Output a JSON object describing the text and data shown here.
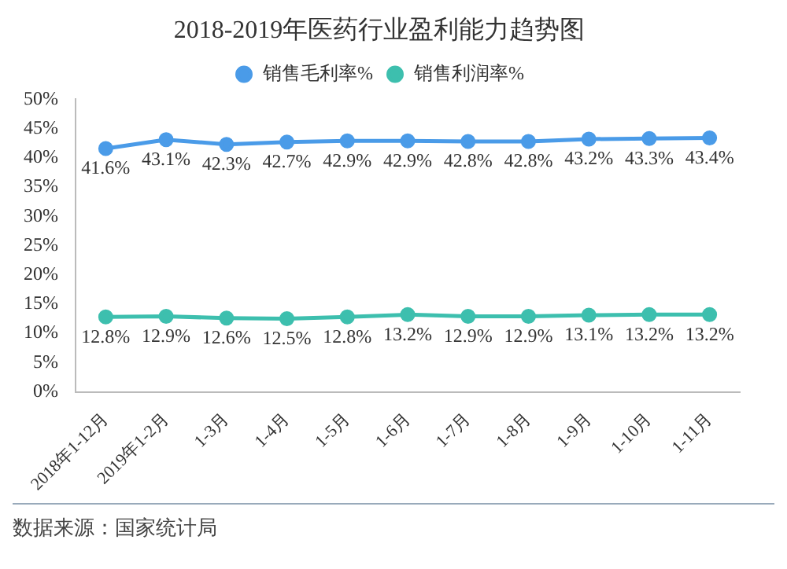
{
  "chart_data": {
    "type": "line",
    "title": "2018-2019年医药行业盈利能力趋势图",
    "categories": [
      "2018年1-12月",
      "2019年1-2月",
      "1-3月",
      "1-4月",
      "1-5月",
      "1-6月",
      "1-7月",
      "1-8月",
      "1-9月",
      "1-10月",
      "1-11月"
    ],
    "series": [
      {
        "name": "销售毛利率%",
        "color": "#4a9be8",
        "values": [
          41.6,
          43.1,
          42.3,
          42.7,
          42.9,
          42.9,
          42.8,
          42.8,
          43.2,
          43.3,
          43.4
        ],
        "value_labels": [
          "41.6%",
          "43.1%",
          "42.3%",
          "42.7%",
          "42.9%",
          "42.9%",
          "42.8%",
          "42.8%",
          "43.2%",
          "43.3%",
          "43.4%"
        ]
      },
      {
        "name": "销售利润率%",
        "color": "#3dbfae",
        "values": [
          12.8,
          12.9,
          12.6,
          12.5,
          12.8,
          13.2,
          12.9,
          12.9,
          13.1,
          13.2,
          13.2
        ],
        "value_labels": [
          "12.8%",
          "12.9%",
          "12.6%",
          "12.5%",
          "12.8%",
          "13.2%",
          "12.9%",
          "12.9%",
          "13.1%",
          "13.2%",
          "13.2%"
        ]
      }
    ],
    "ylim": [
      0,
      50
    ],
    "yticks": [
      {
        "value": 0,
        "label": "0%"
      },
      {
        "value": 5,
        "label": "5%"
      },
      {
        "value": 10,
        "label": "10%"
      },
      {
        "value": 15,
        "label": "15%"
      },
      {
        "value": 20,
        "label": "20%"
      },
      {
        "value": 25,
        "label": "25%"
      },
      {
        "value": 30,
        "label": "30%"
      },
      {
        "value": 35,
        "label": "35%"
      },
      {
        "value": 40,
        "label": "40%"
      },
      {
        "value": 45,
        "label": "45%"
      },
      {
        "value": 50,
        "label": "50%"
      }
    ],
    "grid": false,
    "legend": "top",
    "marker": "circle",
    "line_style": "solid",
    "annotations": [
      "数据来源：国家统计局"
    ]
  }
}
